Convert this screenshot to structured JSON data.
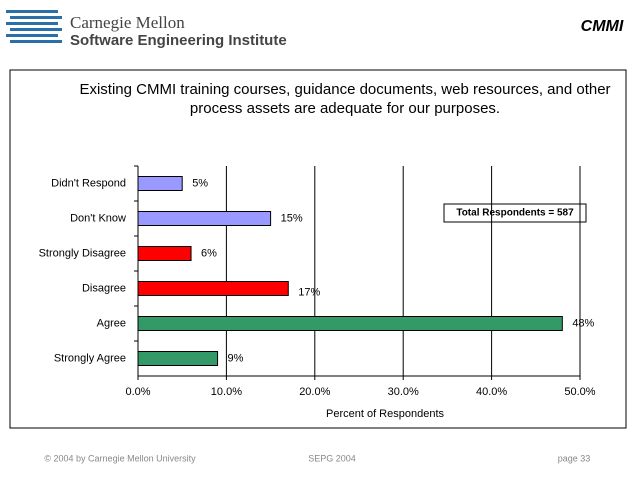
{
  "header": {
    "logo_line1": "Carnegie Mellon",
    "logo_line2": "Software Engineering Institute",
    "badge": "CMMI"
  },
  "chart_data": {
    "type": "bar",
    "orientation": "horizontal",
    "title": "Existing CMMI training courses, guidance documents, web resources, and other process assets are adequate for our purposes.",
    "categories": [
      "Didn't Respond",
      "Don't Know",
      "Strongly Disagree",
      "Disagree",
      "Agree",
      "Strongly Agree"
    ],
    "values": [
      5,
      15,
      6,
      17,
      48,
      9
    ],
    "value_labels": [
      "5%",
      "15%",
      "6%",
      "17%",
      "48%",
      "9%"
    ],
    "colors": [
      "#9999ff",
      "#9999ff",
      "#ff0000",
      "#ff0000",
      "#339966",
      "#339966"
    ],
    "xlabel": "Percent of Respondents",
    "xlim": [
      0,
      50
    ],
    "xticks": [
      {
        "value": 0,
        "label": "0.0%"
      },
      {
        "value": 10,
        "label": "10.0%"
      },
      {
        "value": 20,
        "label": "20.0%"
      },
      {
        "value": 30,
        "label": "30.0%"
      },
      {
        "value": 40,
        "label": "40.0%"
      },
      {
        "value": 50,
        "label": "50.0%"
      }
    ],
    "grid": true,
    "annotation": "Total Respondents = 587"
  },
  "footer": {
    "copyright": "© 2004 by Carnegie Mellon University",
    "event": "SEPG 2004",
    "page": "page 33"
  }
}
